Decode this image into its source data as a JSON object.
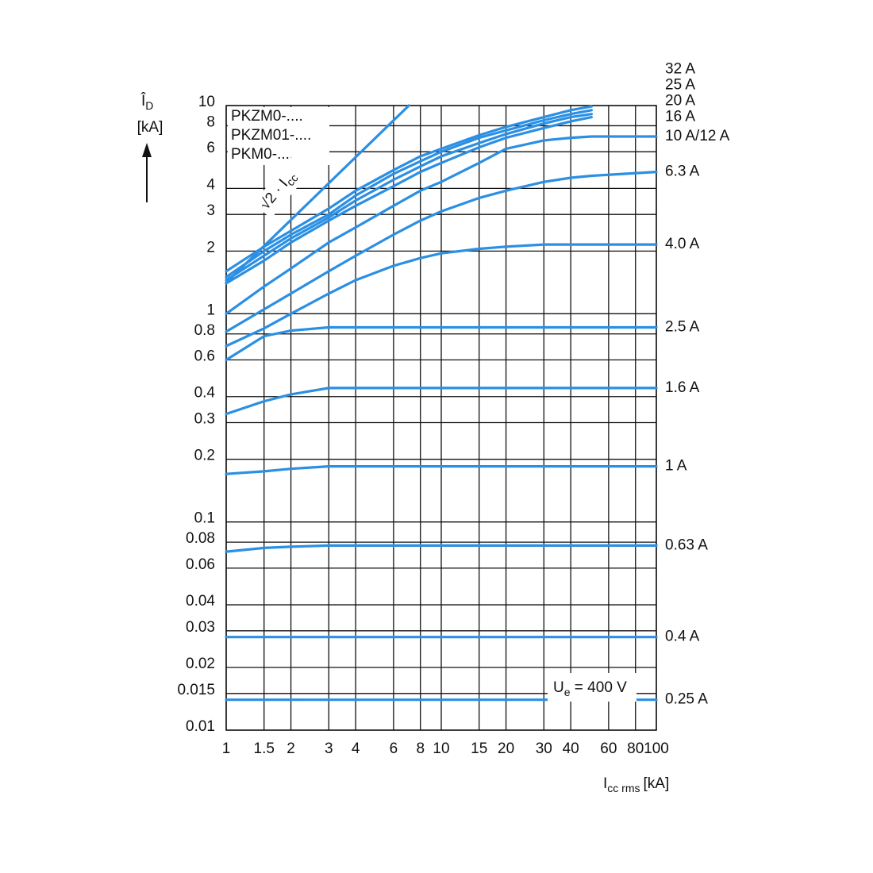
{
  "chart_data": {
    "type": "line",
    "log_x": true,
    "log_y": true,
    "grid": true,
    "color": "#2b8fe3",
    "xlim": [
      1,
      100
    ],
    "xticks": [
      1,
      1.5,
      2,
      3,
      4,
      6,
      8,
      10,
      15,
      20,
      30,
      40,
      60,
      80,
      100
    ],
    "ylim": [
      0.01,
      10
    ],
    "yticks": [
      0.01,
      0.015,
      0.02,
      0.03,
      0.04,
      0.06,
      0.08,
      0.1,
      0.2,
      0.3,
      0.4,
      0.6,
      0.8,
      1,
      2,
      3,
      4,
      6,
      8,
      10
    ],
    "x_label": {
      "main": "I",
      "sub": "cc rms",
      "unit": "[kA]"
    },
    "y_label": {
      "main": "Î",
      "sub": "D",
      "unit": "[kA]"
    },
    "devices": [
      "PKZM0-....",
      "PKZM01-....",
      "PKM0-...."
    ],
    "voltage": {
      "main": "U",
      "sub": "e",
      "rest": " = 400 V"
    },
    "x": [
      1,
      1.5,
      2,
      3,
      4,
      6,
      8,
      10,
      15,
      20,
      30,
      40,
      50,
      100
    ],
    "series": [
      {
        "name": "32 A",
        "values": [
          1.6,
          2.1,
          2.5,
          3.2,
          3.9,
          4.9,
          5.7,
          6.2,
          7.2,
          7.9,
          8.8,
          9.5,
          9.9,
          null
        ]
      },
      {
        "name": "25 A",
        "values": [
          1.5,
          2.0,
          2.4,
          3.0,
          3.7,
          4.7,
          5.4,
          6.0,
          7.0,
          7.6,
          8.5,
          9.1,
          9.5,
          null
        ]
      },
      {
        "name": "20 A",
        "values": [
          1.45,
          1.9,
          2.3,
          2.9,
          3.5,
          4.4,
          5.1,
          5.7,
          6.6,
          7.3,
          8.2,
          8.8,
          9.1,
          null
        ]
      },
      {
        "name": "16 A",
        "values": [
          1.4,
          1.8,
          2.2,
          2.8,
          3.3,
          4.1,
          4.8,
          5.3,
          6.3,
          7.0,
          7.8,
          8.4,
          8.8,
          null
        ]
      },
      {
        "name": "10 A/12 A",
        "values": [
          1.0,
          1.35,
          1.65,
          2.2,
          2.6,
          3.3,
          3.9,
          4.3,
          5.3,
          6.2,
          6.8,
          7.0,
          7.1,
          7.1
        ]
      },
      {
        "name": "6.3 A",
        "values": [
          0.82,
          1.05,
          1.25,
          1.6,
          1.9,
          2.4,
          2.8,
          3.1,
          3.6,
          3.9,
          4.3,
          4.5,
          4.6,
          4.8
        ]
      },
      {
        "name": "4.0 A",
        "values": [
          0.7,
          0.85,
          1.0,
          1.25,
          1.45,
          1.7,
          1.85,
          1.95,
          2.05,
          2.1,
          2.15,
          2.15,
          2.15,
          2.15
        ]
      },
      {
        "name": "2.5 A",
        "values": [
          0.6,
          0.78,
          0.83,
          0.86,
          0.86,
          0.86,
          0.86,
          0.86,
          0.86,
          0.86,
          0.86,
          0.86,
          0.86,
          0.86
        ]
      },
      {
        "name": "1.6 A",
        "values": [
          0.33,
          0.38,
          0.41,
          0.44,
          0.44,
          0.44,
          0.44,
          0.44,
          0.44,
          0.44,
          0.44,
          0.44,
          0.44,
          0.44
        ]
      },
      {
        "name": "1 A",
        "values": [
          0.17,
          0.175,
          0.18,
          0.185,
          0.185,
          0.185,
          0.185,
          0.185,
          0.185,
          0.185,
          0.185,
          0.185,
          0.185,
          0.185
        ]
      },
      {
        "name": "0.63 A",
        "values": [
          0.072,
          0.075,
          0.076,
          0.077,
          0.077,
          0.077,
          0.077,
          0.077,
          0.077,
          0.077,
          0.077,
          0.077,
          0.077,
          0.077
        ]
      },
      {
        "name": "0.4 A",
        "values": [
          0.028,
          0.028,
          0.028,
          0.028,
          0.028,
          0.028,
          0.028,
          0.028,
          0.028,
          0.028,
          0.028,
          0.028,
          0.028,
          0.028
        ]
      },
      {
        "name": "0.25 A",
        "values": [
          0.014,
          0.014,
          0.014,
          0.014,
          0.014,
          0.014,
          0.014,
          0.014,
          0.014,
          0.014,
          0.014,
          0.014,
          0.014,
          0.014
        ]
      }
    ],
    "reference": {
      "main": "√2 · I",
      "sub": "cc",
      "x": [
        1,
        7.07
      ],
      "values": [
        1.41,
        10
      ]
    }
  }
}
